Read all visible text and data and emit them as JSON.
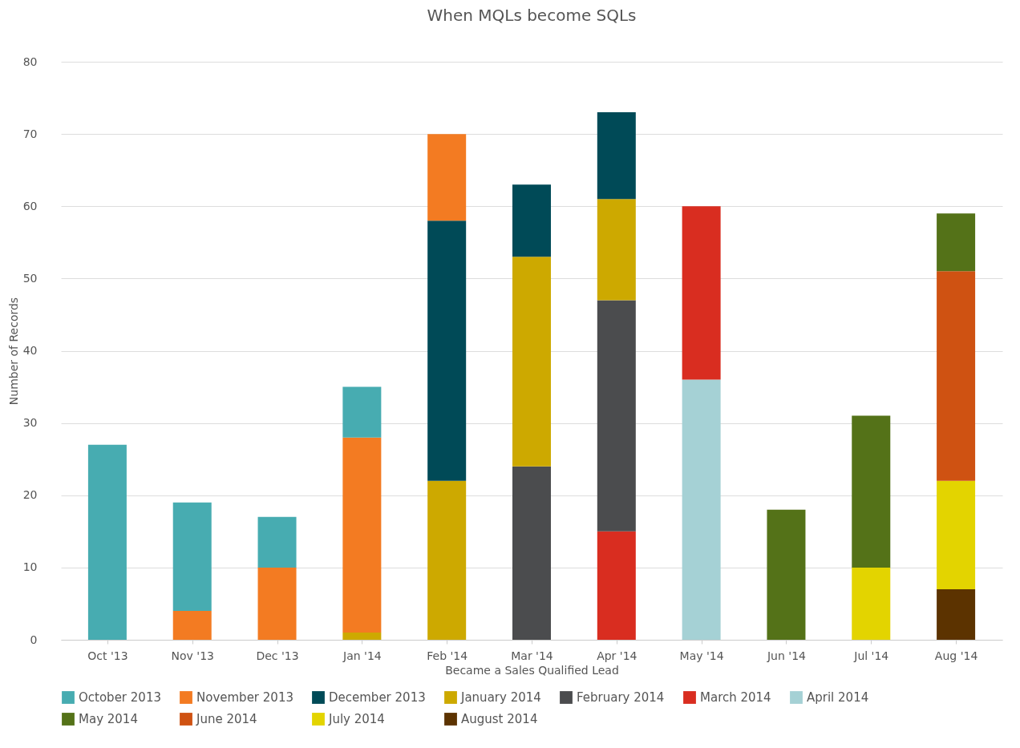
{
  "chart_data": {
    "type": "bar",
    "title": "When MQLs become SQLs",
    "xlabel": "Became a Sales Qualified Lead",
    "ylabel": "Number of Records",
    "categories": [
      "Oct '13",
      "Nov '13",
      "Dec '13",
      "Jan '14",
      "Feb '14",
      "Mar '14",
      "Apr '14",
      "May '14",
      "Jun '14",
      "Jul '14",
      "Aug '14"
    ],
    "stacked": true,
    "ylim": [
      0,
      80
    ],
    "yticks": [
      0,
      10,
      20,
      30,
      40,
      50,
      60,
      70,
      80
    ],
    "grid": "y",
    "legend": "bottom",
    "series": [
      {
        "name": "August 2014",
        "color": "#5c3300",
        "values": [
          null,
          null,
          null,
          null,
          null,
          null,
          null,
          null,
          null,
          null,
          7
        ]
      },
      {
        "name": "July 2014",
        "color": "#e3d400",
        "values": [
          null,
          null,
          null,
          null,
          null,
          null,
          null,
          null,
          null,
          10,
          15
        ]
      },
      {
        "name": "June 2014",
        "color": "#cf5212",
        "values": [
          null,
          null,
          null,
          null,
          null,
          null,
          null,
          null,
          null,
          null,
          29
        ]
      },
      {
        "name": "May 2014",
        "color": "#547218",
        "values": [
          null,
          null,
          null,
          null,
          null,
          null,
          null,
          null,
          18,
          21,
          8
        ]
      },
      {
        "name": "April 2014",
        "color": "#a5d1d5",
        "values": [
          null,
          null,
          null,
          null,
          null,
          null,
          null,
          36,
          null,
          null,
          null
        ]
      },
      {
        "name": "March 2014",
        "color": "#d92d20",
        "values": [
          null,
          null,
          null,
          null,
          null,
          null,
          15,
          24,
          null,
          null,
          null
        ]
      },
      {
        "name": "February 2014",
        "color": "#4b4c4e",
        "values": [
          null,
          null,
          null,
          null,
          null,
          24,
          32,
          null,
          null,
          null,
          null
        ]
      },
      {
        "name": "January 2014",
        "color": "#cda900",
        "values": [
          null,
          null,
          null,
          1,
          22,
          29,
          14,
          null,
          null,
          null,
          null
        ]
      },
      {
        "name": "December 2013",
        "color": "#004a57",
        "values": [
          null,
          null,
          null,
          null,
          36,
          10,
          12,
          null,
          null,
          null,
          null
        ]
      },
      {
        "name": "November 2013",
        "color": "#f37b22",
        "values": [
          null,
          4,
          10,
          27,
          12,
          null,
          null,
          null,
          null,
          null,
          null
        ]
      },
      {
        "name": "October 2013",
        "color": "#47acb1",
        "values": [
          27,
          15,
          7,
          7,
          null,
          null,
          null,
          null,
          null,
          null,
          null
        ]
      }
    ]
  }
}
